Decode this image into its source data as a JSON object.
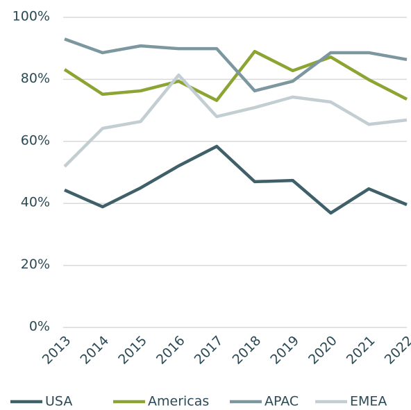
{
  "chart_data": {
    "type": "line",
    "x": [
      "2013",
      "2014",
      "2015",
      "2016",
      "2017",
      "2018",
      "2019",
      "2020",
      "2021",
      "2022"
    ],
    "series": [
      {
        "name": "USA",
        "color": "#3f6068",
        "values": [
          44.3,
          38.9,
          45,
          52.1,
          58.4,
          47,
          47.4,
          36.9,
          44.7,
          39.6
        ]
      },
      {
        "name": "Americas",
        "color": "#8ba432",
        "values": [
          83.2,
          75.2,
          76.3,
          79.4,
          73.2,
          89,
          82.8,
          87.2,
          79.9,
          73.6
        ]
      },
      {
        "name": "APAC",
        "color": "#7d97a0",
        "values": [
          93,
          88.6,
          90.8,
          89.9,
          89.9,
          76.3,
          79.4,
          88.6,
          88.6,
          86.4
        ]
      },
      {
        "name": "EMEA",
        "color": "#c2ced2",
        "values": [
          51.9,
          64.2,
          66.4,
          81.4,
          68,
          70.9,
          74.3,
          72.7,
          65.5,
          66.9
        ]
      }
    ],
    "ylim": [
      0,
      100
    ],
    "yticks": [
      {
        "value": 0,
        "label": "0%"
      },
      {
        "value": 20,
        "label": "20%"
      },
      {
        "value": 40,
        "label": "40%"
      },
      {
        "value": 60,
        "label": "60%"
      },
      {
        "value": 80,
        "label": "80%"
      },
      {
        "value": 100,
        "label": "100%"
      }
    ],
    "grid": true,
    "legend": "bottom"
  }
}
